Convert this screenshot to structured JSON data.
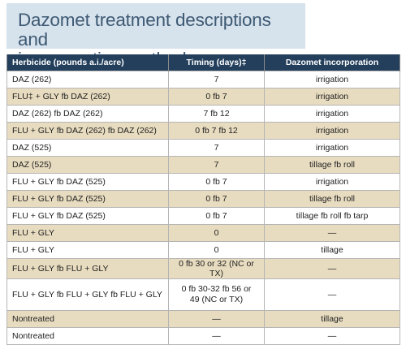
{
  "title": "Dazomet treatment descriptions and\nincorporation methods",
  "table": {
    "headers": [
      "Herbicide (pounds a.i./acre)",
      "Timing (days)‡",
      "Dazomet incorporation"
    ],
    "rows": [
      {
        "herbicide": "DAZ (262)",
        "timing": "7",
        "incorporation": "irrigation",
        "shaded": false
      },
      {
        "herbicide": "FLU‡ + GLY fb DAZ (262)",
        "timing": "0 fb 7",
        "incorporation": "irrigation",
        "shaded": true
      },
      {
        "herbicide": "DAZ (262) fb DAZ (262)",
        "timing": "7 fb 12",
        "incorporation": "irrigation",
        "shaded": false
      },
      {
        "herbicide": "FLU + GLY fb DAZ (262) fb DAZ (262)",
        "timing": "0 fb 7 fb 12",
        "incorporation": "irrigation",
        "shaded": true
      },
      {
        "herbicide": "DAZ (525)",
        "timing": "7",
        "incorporation": "irrigation",
        "shaded": false
      },
      {
        "herbicide": "DAZ (525)",
        "timing": "7",
        "incorporation": "tillage fb roll",
        "shaded": true
      },
      {
        "herbicide": "FLU + GLY fb DAZ (525)",
        "timing": "0 fb 7",
        "incorporation": "irrigation",
        "shaded": false
      },
      {
        "herbicide": "FLU + GLY fb DAZ (525)",
        "timing": "0 fb 7",
        "incorporation": "tillage fb roll",
        "shaded": true
      },
      {
        "herbicide": "FLU + GLY fb DAZ (525)",
        "timing": "0 fb 7",
        "incorporation": "tillage fb roll fb tarp",
        "shaded": false
      },
      {
        "herbicide": "FLU + GLY",
        "timing": "0",
        "incorporation": "—",
        "shaded": true
      },
      {
        "herbicide": "FLU + GLY",
        "timing": "0",
        "incorporation": "tillage",
        "shaded": false
      },
      {
        "herbicide": "FLU + GLY fb FLU + GLY",
        "timing": "0 fb 30 or 32 (NC or TX)",
        "incorporation": "—",
        "shaded": true
      },
      {
        "herbicide": "FLU + GLY fb FLU + GLY fb FLU + GLY",
        "timing": "0 fb 30-32 fb 56 or\n49 (NC or TX)",
        "incorporation": "—",
        "shaded": false,
        "tall": true
      },
      {
        "herbicide": "Nontreated",
        "timing": "—",
        "incorporation": "tillage",
        "shaded": true
      },
      {
        "herbicide": "Nontreated",
        "timing": "—",
        "incorporation": "—",
        "shaded": false
      }
    ]
  }
}
